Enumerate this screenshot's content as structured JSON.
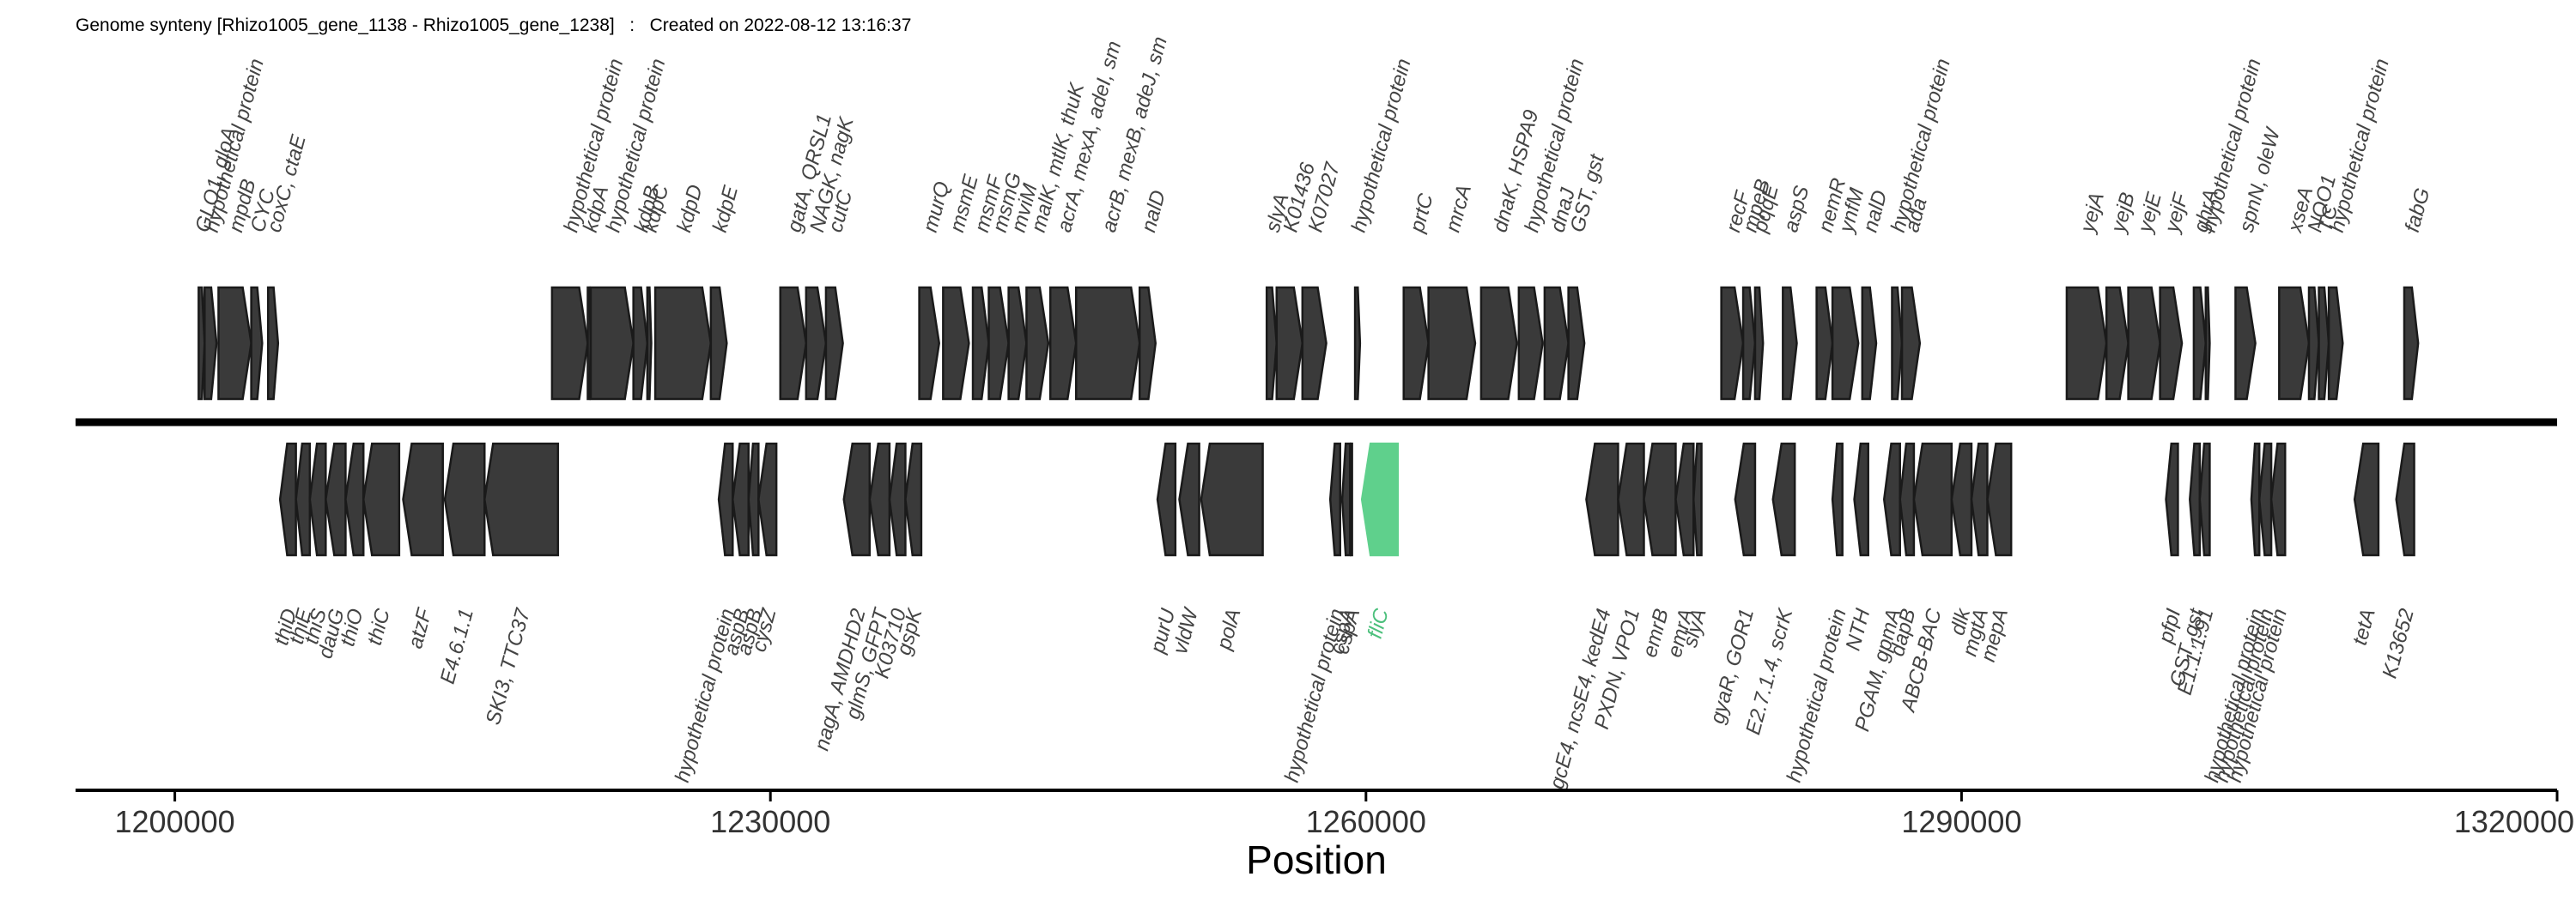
{
  "header": {
    "title": "Genome synteny [Rhizo1005_gene_1138 - Rhizo1005_gene_1238]",
    "sep": ":",
    "created": "Created on 2022-08-12 13:16:37"
  },
  "chart_data": {
    "type": "synteny",
    "xlabel": "Position",
    "xlim": [
      1195000,
      1320000
    ],
    "ticks": [
      {
        "value": 1200000,
        "label": "1200000"
      },
      {
        "value": 1230000,
        "label": "1230000"
      },
      {
        "value": 1260000,
        "label": "1260000"
      },
      {
        "value": 1290000,
        "label": "1290000"
      },
      {
        "value": 1320000,
        "label": "1320000"
      }
    ],
    "colors": {
      "gene": "#3a3a3a",
      "gene_edge": "#1a1a1a",
      "highlight": "#5fd08c",
      "highlight_label": "#4cc07c",
      "label": "#444444"
    },
    "forward_genes": [
      {
        "start": 1201200,
        "end": 1201500,
        "label": "GLO1, gloA"
      },
      {
        "start": 1201500,
        "end": 1202100,
        "label": "hypothetical protein"
      },
      {
        "start": 1202200,
        "end": 1203850,
        "label": "mpdB"
      },
      {
        "start": 1203850,
        "end": 1204400,
        "label": "CYC"
      },
      {
        "start": 1204700,
        "end": 1205200,
        "label": "coxC, ctaE"
      },
      {
        "start": 1219000,
        "end": 1220800,
        "label": "hypothetical protein"
      },
      {
        "start": 1220800,
        "end": 1220950,
        "label": "kdpA"
      },
      {
        "start": 1220950,
        "end": 1223100,
        "label": "hypothetical protein"
      },
      {
        "start": 1223100,
        "end": 1223800,
        "label": "kdpB"
      },
      {
        "start": 1223800,
        "end": 1224000,
        "label": "kdpC"
      },
      {
        "start": 1224200,
        "end": 1227000,
        "label": "kdpD"
      },
      {
        "start": 1227000,
        "end": 1227800,
        "label": "kdpE"
      },
      {
        "start": 1230500,
        "end": 1231800,
        "label": "gatA, QRSL1"
      },
      {
        "start": 1231800,
        "end": 1232800,
        "label": "NAGK, nagK"
      },
      {
        "start": 1232800,
        "end": 1233650,
        "label": "cutC"
      },
      {
        "start": 1237500,
        "end": 1238500,
        "label": "murQ"
      },
      {
        "start": 1238700,
        "end": 1240000,
        "label": "msmE"
      },
      {
        "start": 1240200,
        "end": 1241000,
        "label": "msmF"
      },
      {
        "start": 1241000,
        "end": 1242000,
        "label": "msmG"
      },
      {
        "start": 1242000,
        "end": 1242900,
        "label": "mviM"
      },
      {
        "start": 1242900,
        "end": 1244000,
        "label": "malK, mtlK, thuK"
      },
      {
        "start": 1244100,
        "end": 1245400,
        "label": "acrA, mexA, adeI, sm"
      },
      {
        "start": 1245400,
        "end": 1248600,
        "label": "acrB, mexB, adeJ, sm"
      },
      {
        "start": 1248600,
        "end": 1249400,
        "label": "nalD"
      },
      {
        "start": 1255000,
        "end": 1255500,
        "label": "slyA"
      },
      {
        "start": 1255500,
        "end": 1256800,
        "label": "K01436"
      },
      {
        "start": 1256800,
        "end": 1258000,
        "label": "K07027"
      },
      {
        "start": 1259450,
        "end": 1259700,
        "label": "hypothetical protein"
      },
      {
        "start": 1261900,
        "end": 1263150,
        "label": "prtC"
      },
      {
        "start": 1263150,
        "end": 1265500,
        "label": "mrcA"
      },
      {
        "start": 1265800,
        "end": 1267600,
        "label": "dnaK, HSPA9"
      },
      {
        "start": 1267700,
        "end": 1268900,
        "label": "hypothetical protein"
      },
      {
        "start": 1269000,
        "end": 1270200,
        "label": "dnaJ"
      },
      {
        "start": 1270200,
        "end": 1271000,
        "label": "GST, gst"
      },
      {
        "start": 1277900,
        "end": 1279000,
        "label": "recF"
      },
      {
        "start": 1279000,
        "end": 1279600,
        "label": "mpeB"
      },
      {
        "start": 1279600,
        "end": 1280000,
        "label": "pqqE"
      },
      {
        "start": 1281000,
        "end": 1281700,
        "label": "aspS"
      },
      {
        "start": 1282700,
        "end": 1283500,
        "label": "nemR"
      },
      {
        "start": 1283500,
        "end": 1284800,
        "label": "ynfM"
      },
      {
        "start": 1285000,
        "end": 1285700,
        "label": "nalD"
      },
      {
        "start": 1286500,
        "end": 1287000,
        "label": "hypothetical protein"
      },
      {
        "start": 1287000,
        "end": 1287900,
        "label": "ada"
      },
      {
        "start": 1295300,
        "end": 1297300,
        "label": "yejA"
      },
      {
        "start": 1297300,
        "end": 1298400,
        "label": "yejB"
      },
      {
        "start": 1298400,
        "end": 1300000,
        "label": "yejE"
      },
      {
        "start": 1300000,
        "end": 1301100,
        "label": "yejF"
      },
      {
        "start": 1301700,
        "end": 1302300,
        "label": "ghrA"
      },
      {
        "start": 1302300,
        "end": 1302500,
        "label": "hypothetical protein"
      },
      {
        "start": 1303800,
        "end": 1304800,
        "label": "spnN, oleW"
      },
      {
        "start": 1306000,
        "end": 1307500,
        "label": "xseA"
      },
      {
        "start": 1307500,
        "end": 1308000,
        "label": "NQO1"
      },
      {
        "start": 1308000,
        "end": 1308500,
        "label": "TC"
      },
      {
        "start": 1308500,
        "end": 1309200,
        "label": "hypothetical protein"
      },
      {
        "start": 1312300,
        "end": 1313000,
        "label": "fabG"
      }
    ],
    "reverse_genes": [
      {
        "start": 1205300,
        "end": 1206100,
        "label": "thiD",
        "highlight": false
      },
      {
        "start": 1206100,
        "end": 1206800,
        "label": "thiE",
        "highlight": false
      },
      {
        "start": 1206800,
        "end": 1207600,
        "label": "thiS",
        "highlight": false
      },
      {
        "start": 1207600,
        "end": 1208600,
        "label": "dauG",
        "highlight": false
      },
      {
        "start": 1208600,
        "end": 1209500,
        "label": "thiO",
        "highlight": false
      },
      {
        "start": 1209500,
        "end": 1211300,
        "label": "thiC",
        "highlight": false
      },
      {
        "start": 1211500,
        "end": 1213500,
        "label": "atzF",
        "highlight": false
      },
      {
        "start": 1213600,
        "end": 1215600,
        "label": "E4.6.1.1",
        "highlight": false
      },
      {
        "start": 1215600,
        "end": 1219300,
        "label": "SKI3, TTC37",
        "highlight": false
      },
      {
        "start": 1227400,
        "end": 1228100,
        "label": "hypothetical protein",
        "highlight": false
      },
      {
        "start": 1228100,
        "end": 1228900,
        "label": "aspB",
        "highlight": false
      },
      {
        "start": 1228900,
        "end": 1229400,
        "label": "aspB",
        "highlight": false
      },
      {
        "start": 1229400,
        "end": 1230300,
        "label": "cysZ",
        "highlight": false
      },
      {
        "start": 1233700,
        "end": 1235000,
        "label": "nagA, AMDHD2",
        "highlight": false
      },
      {
        "start": 1235000,
        "end": 1236000,
        "label": "glmS, GFPT",
        "highlight": false
      },
      {
        "start": 1236000,
        "end": 1236800,
        "label": "K03710",
        "highlight": false
      },
      {
        "start": 1236800,
        "end": 1237600,
        "label": "gspK",
        "highlight": false
      },
      {
        "start": 1249500,
        "end": 1250400,
        "label": "purU",
        "highlight": false
      },
      {
        "start": 1250600,
        "end": 1251600,
        "label": "vldW",
        "highlight": false
      },
      {
        "start": 1251700,
        "end": 1254800,
        "label": "polA",
        "highlight": false
      },
      {
        "start": 1258200,
        "end": 1258700,
        "label": "hypothetical protein",
        "highlight": false
      },
      {
        "start": 1258800,
        "end": 1259200,
        "label": "cspA",
        "highlight": false
      },
      {
        "start": 1259200,
        "end": 1259300,
        "label": "cspA",
        "highlight": false
      },
      {
        "start": 1259800,
        "end": 1261600,
        "label": "fliC",
        "highlight": true
      },
      {
        "start": 1271100,
        "end": 1272700,
        "label": "gcE4, ncsE4, kedE4",
        "highlight": false
      },
      {
        "start": 1272700,
        "end": 1274000,
        "label": "PXDN, VPO1",
        "highlight": false
      },
      {
        "start": 1274000,
        "end": 1275600,
        "label": "emrB",
        "highlight": false
      },
      {
        "start": 1275600,
        "end": 1276500,
        "label": "emrA",
        "highlight": false
      },
      {
        "start": 1276500,
        "end": 1276900,
        "label": "slyA",
        "highlight": false
      },
      {
        "start": 1278600,
        "end": 1279600,
        "label": "gyaR, GOR1",
        "highlight": false
      },
      {
        "start": 1280500,
        "end": 1281600,
        "label": "E2.7.1.4, scrK",
        "highlight": false
      },
      {
        "start": 1283500,
        "end": 1284000,
        "label": "hypothetical protein",
        "highlight": false
      },
      {
        "start": 1284600,
        "end": 1285300,
        "label": "NTH",
        "highlight": false
      },
      {
        "start": 1286100,
        "end": 1286900,
        "label": "PGAM, gpmA",
        "highlight": false
      },
      {
        "start": 1286900,
        "end": 1287600,
        "label": "dapB",
        "highlight": false
      },
      {
        "start": 1287600,
        "end": 1289500,
        "label": "ABCB-BAC",
        "highlight": false
      },
      {
        "start": 1289500,
        "end": 1290500,
        "label": "dlk",
        "highlight": false
      },
      {
        "start": 1290500,
        "end": 1291300,
        "label": "mgtA",
        "highlight": false
      },
      {
        "start": 1291300,
        "end": 1292500,
        "label": "mepA",
        "highlight": false
      },
      {
        "start": 1300300,
        "end": 1300900,
        "label": "pfpI",
        "highlight": false
      },
      {
        "start": 1301500,
        "end": 1302000,
        "label": "GST, gst",
        "highlight": false
      },
      {
        "start": 1302000,
        "end": 1302500,
        "label": "E1.1.1.91",
        "highlight": false
      },
      {
        "start": 1304600,
        "end": 1305000,
        "label": "hypothetical protein",
        "highlight": false
      },
      {
        "start": 1305000,
        "end": 1305600,
        "label": "hypothetical protein",
        "highlight": false
      },
      {
        "start": 1305600,
        "end": 1306300,
        "label": "hypothetical protein",
        "highlight": false
      },
      {
        "start": 1309800,
        "end": 1311000,
        "label": "tetA",
        "highlight": false
      },
      {
        "start": 1311900,
        "end": 1312800,
        "label": "K13652",
        "highlight": false
      }
    ]
  }
}
